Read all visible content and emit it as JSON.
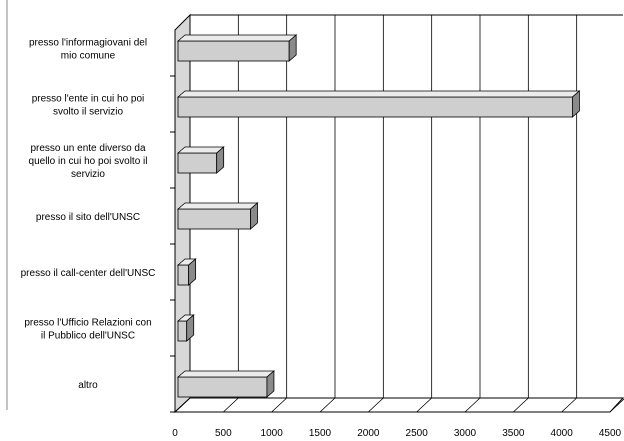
{
  "chart_data": {
    "type": "bar3d_horizontal",
    "categories": [
      "presso l'informagiovani del\nmio comune",
      "presso l'ente in cui ho poi\nsvolto il servizio",
      "presso un ente diverso da\nquello in cui ho poi svolto il\nservizio",
      "presso il sito dell'UNSC",
      "presso il call-center dell'UNSC",
      "presso l'Ufficio Relazioni con\nil Pubblico dell'UNSC",
      "altro"
    ],
    "values": [
      1150,
      4080,
      400,
      750,
      110,
      90,
      920
    ],
    "color": "#cfcfcf",
    "xlim": [
      0,
      4500
    ],
    "xticks": [
      0,
      500,
      1000,
      1500,
      2000,
      2500,
      3000,
      3500,
      4000,
      4500
    ],
    "grid": true
  }
}
